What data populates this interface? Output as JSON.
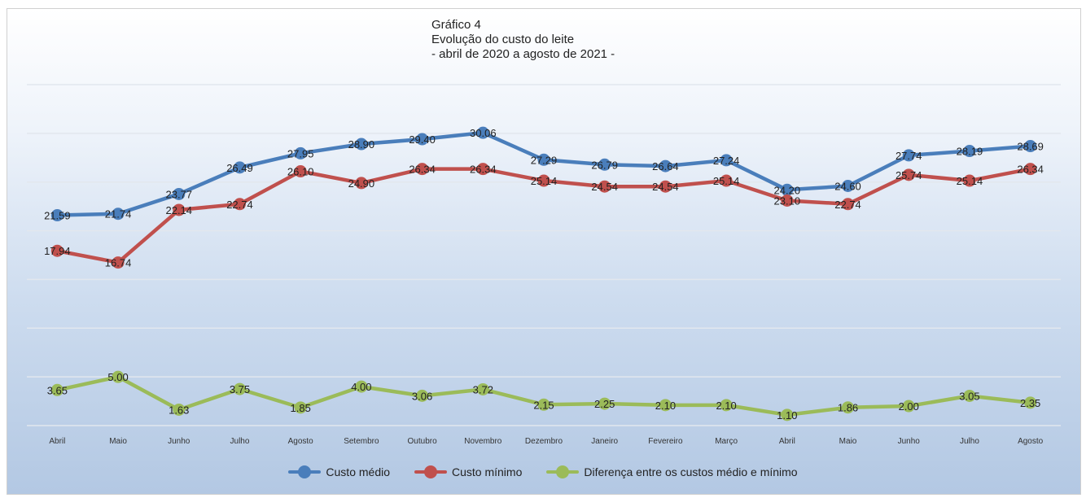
{
  "chart_data": {
    "type": "line",
    "title_lines": [
      "Gráfico 4",
      "Evolução do custo do leite",
      "- abril de 2020 a agosto de 2021 -"
    ],
    "categories": [
      "Abril",
      "Maio",
      "Junho",
      "Julho",
      "Agosto",
      "Setembro",
      "Outubro",
      "Novembro",
      "Dezembro",
      "Janeiro",
      "Fevereiro",
      "Março",
      "Abril",
      "Maio",
      "Junho",
      "Julho",
      "Agosto"
    ],
    "series": [
      {
        "name": "Custo médio",
        "color": "#4a7ebb",
        "values": [
          21.59,
          21.74,
          23.77,
          26.49,
          27.95,
          28.9,
          29.4,
          30.06,
          27.29,
          26.79,
          26.64,
          27.24,
          24.2,
          24.6,
          27.74,
          28.19,
          28.69
        ]
      },
      {
        "name": "Custo mínimo",
        "color": "#c0504d",
        "values": [
          17.94,
          16.74,
          22.14,
          22.74,
          26.1,
          24.9,
          26.34,
          26.34,
          25.14,
          24.54,
          24.54,
          25.14,
          23.1,
          22.74,
          25.74,
          25.14,
          26.34
        ]
      },
      {
        "name": "Diferença entre os custos médio e mínimo",
        "color": "#9bbb59",
        "values": [
          3.65,
          5.0,
          1.63,
          3.75,
          1.85,
          4.0,
          3.06,
          3.72,
          2.15,
          2.25,
          2.1,
          2.1,
          1.1,
          1.86,
          2.0,
          3.05,
          2.35
        ]
      }
    ],
    "value_labels": [
      [
        "21.59",
        "21.74",
        "23.77",
        "26.49",
        "27.95",
        "28.90",
        "29.40",
        "30.06",
        "27.29",
        "26.79",
        "26.64",
        "27.24",
        "24.20",
        "24.60",
        "27.74",
        "28.19",
        "28.69"
      ],
      [
        "17.94",
        "16.74",
        "22.14",
        "22.74",
        "26.10",
        "24.90",
        "26.34",
        "26.34",
        "25.14",
        "24.54",
        "24.54",
        "25.14",
        "23.10",
        "22.74",
        "25.74",
        "25.14",
        "26.34"
      ],
      [
        "3.65",
        "5.00",
        "1.63",
        "3.75",
        "1.85",
        "4.00",
        "3.06",
        "3.72",
        "2.15",
        "2.25",
        "2.10",
        "2.10",
        "1.10",
        "1.86",
        "2.00",
        "3.05",
        "2.35"
      ]
    ],
    "ylim": [
      0,
      35
    ],
    "grid": true,
    "legend_position": "bottom"
  }
}
